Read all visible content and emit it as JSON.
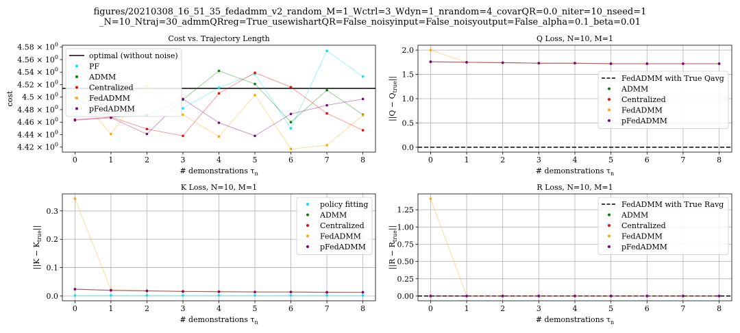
{
  "figure": {
    "title_line1": "figures/20210308_16_51_35_fedadmm_v2_random_M=1_Wctrl=3_Wdyn=1_nrandom=4_covarQR=0.0_niter=10_nseed=1",
    "title_line2": "_N=10_Ntraj=30_admmQRreg=True_usewishartQR=False_noisyinput=False_noisyoutput=False_alpha=0.1_beta=0.01"
  },
  "colors": {
    "optimal": "#000000",
    "PF": "#00e5ff",
    "ADMM": "#008000",
    "Centralized": "#ff0000",
    "FedADMM": "#ffa500",
    "pFedADMM": "#800080",
    "grid": "#b0b0b0"
  },
  "chart_data": [
    {
      "id": "cost",
      "type": "scatter",
      "title": "Cost vs. Trajectory Length",
      "xlabel": "# demonstrations τ",
      "xlabel_sub": "n",
      "ylabel": "cost",
      "xlim": [
        -0.35,
        8.35
      ],
      "ylim": [
        4.412,
        4.583
      ],
      "xticks": [
        0,
        1,
        2,
        3,
        4,
        5,
        6,
        7,
        8
      ],
      "yticks": [
        4.42,
        4.44,
        4.46,
        4.48,
        4.5,
        4.52,
        4.54,
        4.56,
        4.58
      ],
      "ytick_labels": [
        "4.42 × 10",
        "4.44 × 10",
        "4.46 × 10",
        "4.48 × 10",
        "4.5 × 10",
        "4.52 × 10",
        "4.54 × 10",
        "4.56 × 10",
        "4.58 × 10"
      ],
      "ytick_exp": "0",
      "grid": false,
      "legend_placement": "upper-left",
      "hline": {
        "name": "optimal (without noise)",
        "y": 4.514,
        "color": "#000000",
        "dashed": false
      },
      "x": [
        0,
        1,
        2,
        3,
        4,
        5,
        6,
        7,
        8
      ],
      "series": [
        {
          "name": "PF",
          "color": "#00e5ff",
          "values": [
            4.519,
            4.468,
            4.471,
            4.482,
            4.515,
            4.537,
            4.45,
            4.574,
            4.533
          ]
        },
        {
          "name": "ADMM",
          "color": "#008000",
          "values": [
            4.499,
            4.468,
            4.471,
            4.496,
            4.542,
            4.521,
            4.46,
            4.511,
            4.472
          ]
        },
        {
          "name": "Centralized",
          "color": "#ff0000",
          "values": [
            4.464,
            4.468,
            4.449,
            4.438,
            4.506,
            4.539,
            4.516,
            4.474,
            4.447
          ]
        },
        {
          "name": "FedADMM",
          "color": "#ffa500",
          "values": [
            4.508,
            4.441,
            4.518,
            4.472,
            4.437,
            4.503,
            4.417,
            4.423,
            4.471
          ]
        },
        {
          "name": "pFedADMM",
          "color": "#800080",
          "values": [
            4.463,
            4.467,
            4.441,
            4.497,
            4.459,
            4.438,
            4.473,
            4.487,
            4.497
          ]
        }
      ]
    },
    {
      "id": "qloss",
      "type": "scatter",
      "title": "Q Loss, N=10, M=1",
      "xlabel": "# demonstrations τ",
      "xlabel_sub": "n",
      "ylabel": "||Q − Q",
      "ylabel_sub": "true",
      "ylabel_tail": "||",
      "xlim": [
        -0.35,
        8.35
      ],
      "ylim": [
        -0.1,
        2.1
      ],
      "xticks": [
        0,
        1,
        2,
        3,
        4,
        5,
        6,
        7,
        8
      ],
      "yticks": [
        0.0,
        0.5,
        1.0,
        1.5,
        2.0
      ],
      "ytick_labels": [
        "0.0",
        "0.5",
        "1.0",
        "1.5",
        "2.0"
      ],
      "grid": true,
      "legend_placement": "center-right",
      "hline": {
        "name": "FedADMM with True Qavg",
        "y": 0.0,
        "color": "#000000",
        "dashed": true
      },
      "x": [
        0,
        1,
        2,
        3,
        4,
        5,
        6,
        7,
        8
      ],
      "series": [
        {
          "name": "ADMM",
          "color": "#008000",
          "values": [
            1.76,
            1.75,
            1.74,
            1.73,
            1.73,
            1.72,
            1.72,
            1.72,
            1.72
          ]
        },
        {
          "name": "Centralized",
          "color": "#ff0000",
          "values": [
            1.76,
            1.75,
            1.74,
            1.73,
            1.73,
            1.72,
            1.72,
            1.72,
            1.72
          ]
        },
        {
          "name": "FedADMM",
          "color": "#ffa500",
          "values": [
            2.0,
            1.75,
            1.74,
            1.73,
            1.73,
            1.72,
            1.72,
            1.72,
            1.72
          ]
        },
        {
          "name": "pFedADMM",
          "color": "#800080",
          "values": [
            1.76,
            1.75,
            1.74,
            1.73,
            1.73,
            1.72,
            1.72,
            1.72,
            1.72
          ]
        }
      ]
    },
    {
      "id": "kloss",
      "type": "scatter",
      "title": "K Loss, N=10, M=1",
      "xlabel": "# demonstrations τ",
      "xlabel_sub": "n",
      "ylabel": "||K − K",
      "ylabel_sub": "true",
      "ylabel_tail": "||",
      "xlim": [
        -0.35,
        8.35
      ],
      "ylim": [
        -0.017,
        0.36
      ],
      "xticks": [
        0,
        1,
        2,
        3,
        4,
        5,
        6,
        7,
        8
      ],
      "yticks": [
        0.0,
        0.1,
        0.2,
        0.3
      ],
      "ytick_labels": [
        "0.0",
        "0.1",
        "0.2",
        "0.3"
      ],
      "grid": true,
      "legend_placement": "upper-right",
      "hline": null,
      "x": [
        0,
        1,
        2,
        3,
        4,
        5,
        6,
        7,
        8
      ],
      "series": [
        {
          "name": "policy fitting",
          "color": "#00e5ff",
          "values": [
            0.002,
            0.002,
            0.002,
            0.002,
            0.002,
            0.002,
            0.002,
            0.002,
            0.002
          ]
        },
        {
          "name": "ADMM",
          "color": "#008000",
          "values": [
            0.024,
            0.02,
            0.018,
            0.016,
            0.015,
            0.014,
            0.014,
            0.013,
            0.013
          ]
        },
        {
          "name": "Centralized",
          "color": "#ff0000",
          "values": [
            0.024,
            0.02,
            0.018,
            0.016,
            0.015,
            0.014,
            0.014,
            0.013,
            0.013
          ]
        },
        {
          "name": "FedADMM",
          "color": "#ffa500",
          "values": [
            0.343,
            0.022,
            0.019,
            0.017,
            0.016,
            0.015,
            0.014,
            0.014,
            0.013
          ]
        },
        {
          "name": "pFedADMM",
          "color": "#800080",
          "values": [
            0.024,
            0.02,
            0.018,
            0.016,
            0.015,
            0.014,
            0.014,
            0.013,
            0.013
          ]
        }
      ]
    },
    {
      "id": "rloss",
      "type": "scatter",
      "title": "R Loss, N=10, M=1",
      "xlabel": "# demonstrations τ",
      "xlabel_sub": "n",
      "ylabel": "||R − R",
      "ylabel_sub": "true",
      "ylabel_tail": "||",
      "xlim": [
        -0.35,
        8.35
      ],
      "ylim": [
        -0.07,
        1.48
      ],
      "xticks": [
        0,
        1,
        2,
        3,
        4,
        5,
        6,
        7,
        8
      ],
      "yticks": [
        0.0,
        0.25,
        0.5,
        0.75,
        1.0,
        1.25
      ],
      "ytick_labels": [
        "0.00",
        "0.25",
        "0.50",
        "0.75",
        "1.00",
        "1.25"
      ],
      "grid": true,
      "legend_placement": "upper-right",
      "hline": {
        "name": "FedADMM with True Ravg",
        "y": 0.0,
        "color": "#000000",
        "dashed": true
      },
      "x": [
        0,
        1,
        2,
        3,
        4,
        5,
        6,
        7,
        8
      ],
      "series": [
        {
          "name": "ADMM",
          "color": "#008000",
          "values": [
            0.0,
            0.0,
            0.0,
            0.0,
            0.0,
            0.0,
            0.0,
            0.0,
            0.0
          ]
        },
        {
          "name": "Centralized",
          "color": "#ff0000",
          "values": [
            0.0,
            0.0,
            0.0,
            0.0,
            0.0,
            0.0,
            0.0,
            0.0,
            0.0
          ]
        },
        {
          "name": "FedADMM",
          "color": "#ffa500",
          "values": [
            1.41,
            0.0,
            0.0,
            0.0,
            0.0,
            0.0,
            0.0,
            0.0,
            0.0
          ]
        },
        {
          "name": "pFedADMM",
          "color": "#800080",
          "values": [
            0.0,
            0.0,
            0.0,
            0.0,
            0.0,
            0.0,
            0.0,
            0.0,
            0.0
          ]
        }
      ]
    }
  ]
}
